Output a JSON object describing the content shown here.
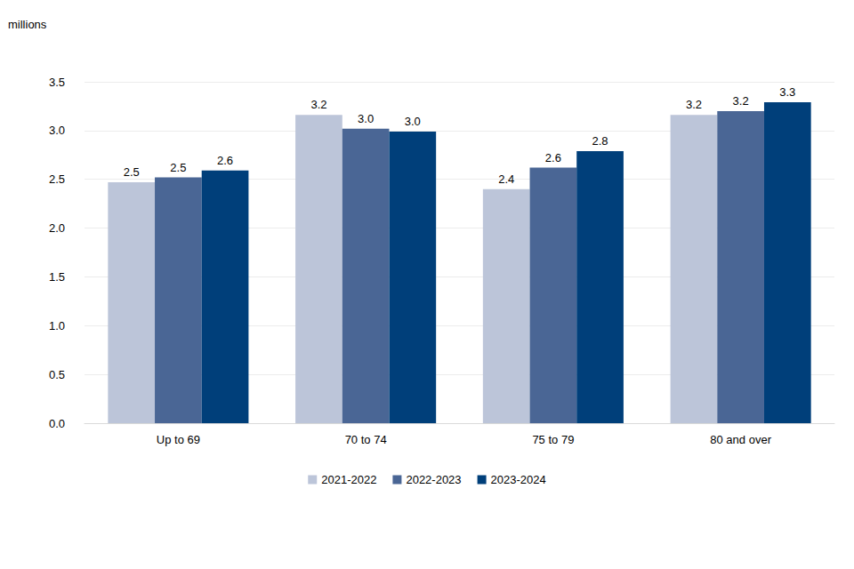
{
  "chart_data": {
    "type": "bar",
    "y_label": "millions",
    "categories": [
      "Up to 69",
      "70 to 74",
      "75 to 79",
      "80 and over"
    ],
    "series": [
      {
        "name": "2021-2022",
        "color": "#bcc5d9",
        "values": [
          2.47,
          3.16,
          2.4,
          3.16
        ],
        "value_labels": [
          "2.5",
          "3.2",
          "2.4",
          "3.2"
        ]
      },
      {
        "name": "2022-2023",
        "color": "#4a6695",
        "values": [
          2.52,
          3.02,
          2.62,
          3.2
        ],
        "value_labels": [
          "2.5",
          "3.0",
          "2.6",
          "3.2"
        ]
      },
      {
        "name": "2023-2024",
        "color": "#003f7a",
        "values": [
          2.59,
          2.99,
          2.79,
          3.29
        ],
        "value_labels": [
          "2.6",
          "3.0",
          "2.8",
          "3.3"
        ]
      }
    ],
    "ylim": [
      0,
      3.5
    ],
    "yticks": [
      {
        "value": 0,
        "label": "0.0"
      },
      0.5,
      {
        "value": 1,
        "label": "1.0"
      },
      1.5,
      {
        "value": 2,
        "label": "2.0"
      },
      2.5,
      {
        "value": 3,
        "label": "3.0"
      },
      3.5
    ],
    "grid": true,
    "legend": "bottom",
    "data_labels": true
  }
}
